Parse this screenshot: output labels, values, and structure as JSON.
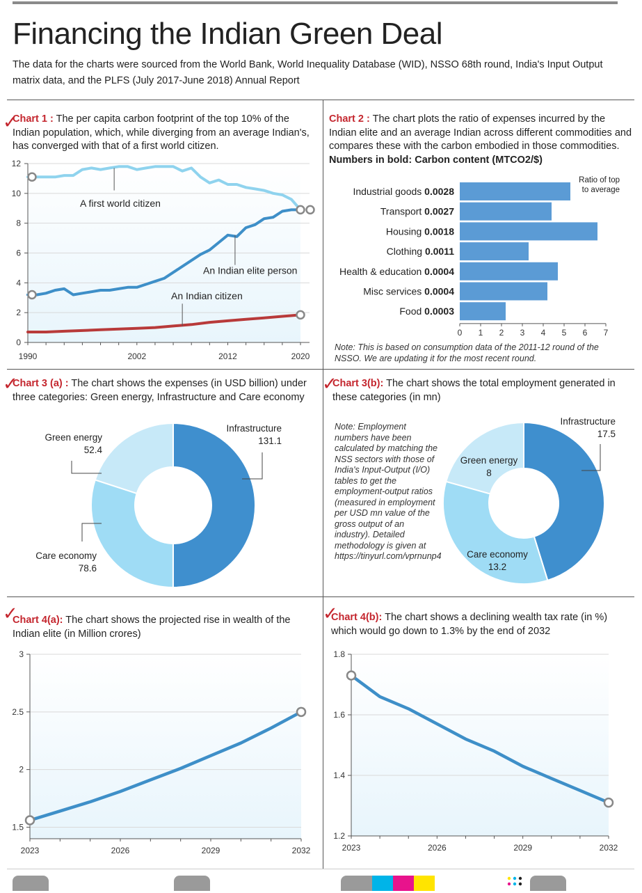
{
  "header": {
    "title": "Financing the Indian Green Deal",
    "subtitle": "The data for the charts were sourced from the World Bank, World Inequality Database (WID), NSSO 68th round, India's Input Output matrix data, and the PLFS (July 2017-June 2018) Annual Report"
  },
  "chart1": {
    "label": "Chart 1 :",
    "text": "The per capita carbon footprint of the top 10% of the Indian population, which, while diverging from an average Indian's, has converged with that of a first world citizen."
  },
  "chart2": {
    "label": "Chart 2 :",
    "text": "The chart plots the ratio of expenses incurred by the Indian elite and an average Indian across different commodities and compares these with the carbon embodied in those commodities.",
    "bold_text": "Numbers in bold: Carbon content (MTCO2/$)",
    "note": "Note: This is based on consumption data of the 2011-12 round of the NSSO. We are updating it for the most recent round."
  },
  "chart3a": {
    "label": "Chart 3 (a) :",
    "text": "The chart shows the expenses (in USD billion) under three categories: Green energy, Infrastructure and Care economy"
  },
  "chart3b": {
    "label": "Chart 3(b):",
    "text": "The chart shows the total employment generated in these categories (in mn)",
    "note": "Note: Employment numbers have been calculated by matching the NSS sectors with those of India's Input-Output (I/O) tables to get the employment-output ratios (measured in employment per USD mn value of the gross output of an industry). Detailed methodology is given at https://tinyurl.com/vprnunp4"
  },
  "chart4a": {
    "label": "Chart 4(a):",
    "text": "The chart shows the projected rise in wealth of the Indian elite (in Million crores)"
  },
  "chart4b": {
    "label": "Chart 4(b):",
    "text": "The chart shows a declining wealth tax rate (in %) which would go down to 1.3% by the end of 2032"
  },
  "colors": {
    "accent_red": "#c4262e",
    "line_light_blue": "#8fd3ee",
    "line_blue": "#3e8fc8",
    "line_red": "#b83a3a",
    "bar_blue": "#5b9bd5",
    "donut_dark": "#3f8fce",
    "donut_mid": "#9fdcf5",
    "donut_light": "#c7e9f8"
  },
  "chart_data": [
    {
      "id": "chart1",
      "type": "line",
      "xlim": [
        1990,
        2020
      ],
      "ylim": [
        0,
        12
      ],
      "x_ticks": [
        "1990",
        "2002",
        "2012",
        "2020"
      ],
      "y_ticks": [
        "0",
        "2",
        "4",
        "6",
        "8",
        "10",
        "12"
      ],
      "grid": true,
      "series": [
        {
          "name": "A first world citizen",
          "color": "#8fd3ee",
          "x": [
            1990,
            1991,
            1992,
            1993,
            1994,
            1995,
            1996,
            1997,
            1998,
            1999,
            2000,
            2001,
            2002,
            2003,
            2004,
            2005,
            2006,
            2007,
            2008,
            2009,
            2010,
            2011,
            2012,
            2013,
            2014,
            2015,
            2016,
            2017,
            2018,
            2019,
            2020
          ],
          "y": [
            11.1,
            11.1,
            11.1,
            11.1,
            11.2,
            11.2,
            11.6,
            11.7,
            11.6,
            11.7,
            11.8,
            11.8,
            11.6,
            11.7,
            11.8,
            11.8,
            11.8,
            11.5,
            11.7,
            11.1,
            10.7,
            10.9,
            10.6,
            10.6,
            10.4,
            10.3,
            10.2,
            10.0,
            9.9,
            9.6,
            8.9
          ]
        },
        {
          "name": "An Indian elite person",
          "color": "#3e8fc8",
          "x": [
            1990,
            1991,
            1992,
            1993,
            1994,
            1995,
            1996,
            1997,
            1998,
            1999,
            2000,
            2001,
            2002,
            2003,
            2004,
            2005,
            2006,
            2007,
            2008,
            2009,
            2010,
            2011,
            2012,
            2013,
            2014,
            2015,
            2016,
            2017,
            2018,
            2019,
            2020
          ],
          "y": [
            3.2,
            3.2,
            3.3,
            3.5,
            3.6,
            3.2,
            3.3,
            3.4,
            3.5,
            3.5,
            3.6,
            3.7,
            3.7,
            3.9,
            4.1,
            4.3,
            4.7,
            5.1,
            5.5,
            5.9,
            6.2,
            6.7,
            7.2,
            7.1,
            7.7,
            7.9,
            8.3,
            8.4,
            8.8,
            8.9,
            8.9
          ]
        },
        {
          "name": "An Indian citizen",
          "color": "#b83a3a",
          "x": [
            1990,
            1992,
            1994,
            1996,
            1998,
            2000,
            2002,
            2004,
            2006,
            2008,
            2010,
            2012,
            2014,
            2016,
            2018,
            2020
          ],
          "y": [
            0.7,
            0.7,
            0.75,
            0.8,
            0.85,
            0.9,
            0.95,
            1.0,
            1.1,
            1.2,
            1.35,
            1.45,
            1.55,
            1.65,
            1.75,
            1.85
          ]
        }
      ]
    },
    {
      "id": "chart2",
      "type": "bar",
      "orientation": "horizontal",
      "categories": [
        "Industrial goods",
        "Transport",
        "Housing",
        "Clothing",
        "Health & education",
        "Misc services",
        "Food"
      ],
      "carbon_content": [
        "0.0028",
        "0.0027",
        "0.0018",
        "0.0011",
        "0.0004",
        "0.0004",
        "0.0003"
      ],
      "values": [
        5.3,
        4.4,
        6.6,
        3.3,
        4.7,
        4.2,
        2.2
      ],
      "xlim": [
        0,
        7
      ],
      "x_ticks": [
        "0",
        "1",
        "2",
        "3",
        "4",
        "5",
        "6",
        "7"
      ],
      "legend_label": "Ratio of top to average",
      "color": "#5b9bd5"
    },
    {
      "id": "chart3a",
      "type": "pie",
      "donut": true,
      "labels": [
        "Infrastructure",
        "Care economy",
        "Green energy"
      ],
      "values": [
        131.1,
        78.6,
        52.4
      ],
      "value_labels": [
        "131.1",
        "78.6",
        "52.4"
      ],
      "colors": [
        "#3f8fce",
        "#9fdcf5",
        "#c7e9f8"
      ]
    },
    {
      "id": "chart3b",
      "type": "pie",
      "donut": true,
      "labels": [
        "Infrastructure",
        "Care economy",
        "Green energy"
      ],
      "values": [
        17.5,
        13.2,
        8
      ],
      "value_labels": [
        "17.5",
        "13.2",
        "8"
      ],
      "colors": [
        "#3f8fce",
        "#9fdcf5",
        "#c7e9f8"
      ]
    },
    {
      "id": "chart4a",
      "type": "line",
      "xlim": [
        2023,
        2032
      ],
      "ylim": [
        1.4,
        3
      ],
      "x_ticks": [
        "2023",
        "2026",
        "2029",
        "2032"
      ],
      "y_ticks": [
        "1.5",
        "2",
        "2.5",
        "3"
      ],
      "x": [
        2023,
        2024,
        2025,
        2026,
        2027,
        2028,
        2029,
        2030,
        2031,
        2032
      ],
      "y": [
        1.56,
        1.64,
        1.72,
        1.81,
        1.91,
        2.01,
        2.12,
        2.23,
        2.36,
        2.5
      ],
      "color": "#3e8fc8"
    },
    {
      "id": "chart4b",
      "type": "line",
      "xlim": [
        2023,
        2032
      ],
      "ylim": [
        1.2,
        1.8
      ],
      "x_ticks": [
        "2023",
        "2026",
        "2029",
        "2032"
      ],
      "y_ticks": [
        "1.2",
        "1.4",
        "1.6",
        "1.8"
      ],
      "x": [
        2023,
        2024,
        2025,
        2026,
        2027,
        2028,
        2029,
        2030,
        2031,
        2032
      ],
      "y": [
        1.73,
        1.66,
        1.62,
        1.57,
        1.52,
        1.48,
        1.43,
        1.39,
        1.35,
        1.31
      ],
      "color": "#3e8fc8"
    }
  ]
}
